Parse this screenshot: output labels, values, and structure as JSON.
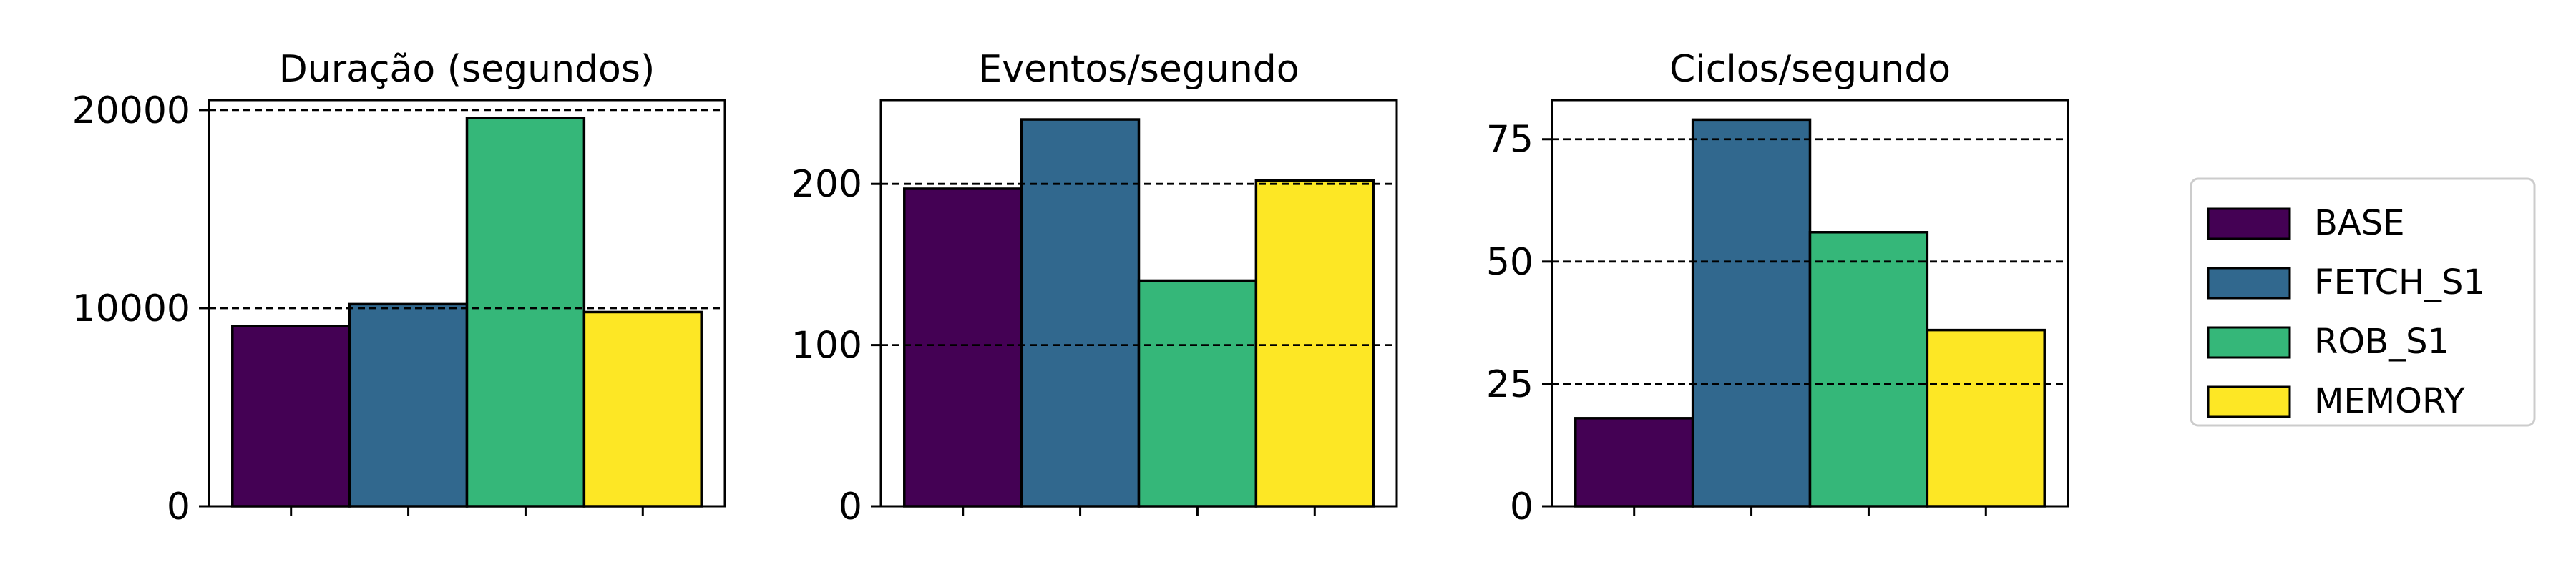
{
  "chart_data": [
    {
      "type": "bar",
      "title": "Duração (segundos)",
      "xlabel": "",
      "ylabel": "",
      "categories": [
        "BASE",
        "FETCH_S1",
        "ROB_S1",
        "MEMORY"
      ],
      "values": [
        9100,
        10200,
        19600,
        9800
      ],
      "ylim": [
        0,
        20500
      ],
      "yticks": [
        0,
        10000,
        20000
      ],
      "xtick_labels": [
        "",
        "",
        "",
        ""
      ],
      "grid": "y dashed"
    },
    {
      "type": "bar",
      "title": "Eventos/segundo",
      "xlabel": "",
      "ylabel": "",
      "categories": [
        "BASE",
        "FETCH_S1",
        "ROB_S1",
        "MEMORY"
      ],
      "values": [
        197,
        240,
        140,
        202
      ],
      "ylim": [
        0,
        252
      ],
      "yticks": [
        0,
        100,
        200
      ],
      "xtick_labels": [
        "",
        "",
        "",
        ""
      ],
      "grid": "y dashed"
    },
    {
      "type": "bar",
      "title": "Ciclos/segundo",
      "xlabel": "",
      "ylabel": "",
      "categories": [
        "BASE",
        "FETCH_S1",
        "ROB_S1",
        "MEMORY"
      ],
      "values": [
        18,
        79,
        56,
        36
      ],
      "ylim": [
        0,
        83
      ],
      "yticks": [
        0,
        25,
        50,
        75
      ],
      "xtick_labels": [
        "",
        "",
        "",
        ""
      ],
      "grid": "y dashed"
    }
  ],
  "legend": {
    "placement": "right",
    "entries": [
      {
        "label": "BASE",
        "color": "#440154"
      },
      {
        "label": "FETCH_S1",
        "color": "#31688e"
      },
      {
        "label": "ROB_S1",
        "color": "#35b779"
      },
      {
        "label": "MEMORY",
        "color": "#fde725"
      }
    ]
  },
  "colors": {
    "bar_edge": "#000000",
    "grid": "#000000",
    "background": "#ffffff"
  }
}
